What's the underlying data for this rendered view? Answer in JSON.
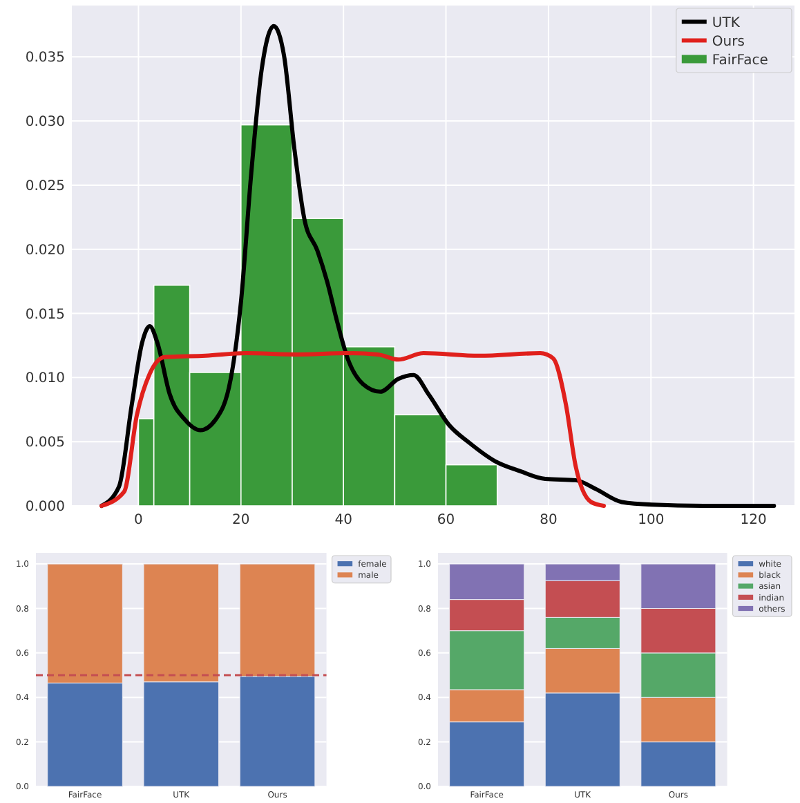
{
  "chart_data": [
    {
      "type": "histogram",
      "xlim": [
        -13,
        128
      ],
      "ylim": [
        0,
        0.039
      ],
      "xticks": [
        0,
        20,
        40,
        60,
        80,
        100,
        120
      ],
      "yticks": [
        {
          "value": 0,
          "label": "0.000"
        },
        {
          "value": 0.005,
          "label": "0.005"
        },
        {
          "value": 0.01,
          "label": "0.010"
        },
        {
          "value": 0.015,
          "label": "0.015"
        },
        {
          "value": 0.02,
          "label": "0.020"
        },
        {
          "value": 0.025,
          "label": "0.025"
        },
        {
          "value": 0.03,
          "label": "0.030"
        },
        {
          "value": 0.035,
          "label": "0.035"
        }
      ],
      "grid": true,
      "legend": "top right",
      "series": [
        {
          "name": "FairFace",
          "type": "histogram",
          "color": "#3a9a3a",
          "bins": [
            0,
            3,
            10,
            20,
            30,
            40,
            50,
            60,
            70
          ],
          "values": [
            0.0068,
            0.0172,
            0.0104,
            0.0297,
            0.0224,
            0.0124,
            0.0071,
            0.0032
          ]
        },
        {
          "name": "UTK",
          "type": "line",
          "color": "#000000",
          "x": [
            -7.2,
            -3.8,
            -1.3,
            0.7,
            2.2,
            3.7,
            6.1,
            9.1,
            12.1,
            15,
            18,
            20,
            22,
            24,
            26.4,
            28.4,
            30.4,
            32.4,
            34.9,
            36.8,
            38.8,
            40.8,
            43.8,
            47.2,
            50.7,
            53.7,
            56.6,
            60.6,
            64.6,
            69.5,
            74.5,
            79.4,
            85.3,
            89.3,
            94.3,
            100.2,
            112,
            124
          ],
          "values": [
            0,
            0.0015,
            0.0079,
            0.0127,
            0.014,
            0.0127,
            0.0087,
            0.0067,
            0.0059,
            0.0067,
            0.0099,
            0.0159,
            0.0259,
            0.0339,
            0.0374,
            0.0351,
            0.0279,
            0.0223,
            0.0199,
            0.0175,
            0.0143,
            0.0115,
            0.0095,
            0.0089,
            0.0099,
            0.0102,
            0.0087,
            0.0063,
            0.0049,
            0.0035,
            0.0027,
            0.0021,
            0.002,
            0.0013,
            0.0003,
            0.0001,
            0,
            0
          ]
        },
        {
          "name": "Ours",
          "type": "line",
          "color": "#e0201c",
          "x": [
            -7.2,
            -2.8,
            -0.3,
            2.2,
            5.1,
            13.1,
            21,
            30.9,
            40.8,
            46.7,
            50.7,
            55.6,
            66.5,
            78.4,
            80.9,
            83.4,
            85.3,
            88.3,
            90.8
          ],
          "values": [
            0,
            0.0011,
            0.0071,
            0.0103,
            0.0116,
            0.0117,
            0.0119,
            0.0118,
            0.0119,
            0.0118,
            0.0114,
            0.0119,
            0.0117,
            0.0119,
            0.0115,
            0.0079,
            0.0031,
            0.0003,
            0
          ]
        }
      ]
    },
    {
      "type": "bar",
      "stacked": true,
      "categories": [
        "FairFace",
        "UTK",
        "Ours"
      ],
      "ylim": [
        0,
        1.05
      ],
      "yticks": [
        {
          "value": 0,
          "label": "0.0"
        },
        {
          "value": 0.2,
          "label": "0.2"
        },
        {
          "value": 0.4,
          "label": "0.4"
        },
        {
          "value": 0.6,
          "label": "0.6"
        },
        {
          "value": 0.8,
          "label": "0.8"
        },
        {
          "value": 1,
          "label": "1.0"
        }
      ],
      "grid": "y",
      "legend": "right",
      "ref_lines": [
        {
          "axis": "y",
          "value": 0.5,
          "color": "#c44e52",
          "line_style": "dashed"
        }
      ],
      "series": [
        {
          "name": "female",
          "color": "#4c72b0",
          "values": [
            0.465,
            0.47,
            0.495
          ]
        },
        {
          "name": "male",
          "color": "#dd8452",
          "values": [
            0.535,
            0.53,
            0.505
          ]
        }
      ]
    },
    {
      "type": "bar",
      "stacked": true,
      "categories": [
        "FairFace",
        "UTK",
        "Ours"
      ],
      "ylim": [
        0,
        1.05
      ],
      "yticks": [
        {
          "value": 0,
          "label": "0.0"
        },
        {
          "value": 0.2,
          "label": "0.2"
        },
        {
          "value": 0.4,
          "label": "0.4"
        },
        {
          "value": 0.6,
          "label": "0.6"
        },
        {
          "value": 0.8,
          "label": "0.8"
        },
        {
          "value": 1,
          "label": "1.0"
        }
      ],
      "grid": "y",
      "legend": "right",
      "series": [
        {
          "name": "white",
          "color": "#4c72b0",
          "values": [
            0.29,
            0.42,
            0.2
          ]
        },
        {
          "name": "black",
          "color": "#dd8452",
          "values": [
            0.145,
            0.2,
            0.2
          ]
        },
        {
          "name": "asian",
          "color": "#55a868",
          "values": [
            0.265,
            0.14,
            0.2
          ]
        },
        {
          "name": "indian",
          "color": "#c44e52",
          "values": [
            0.14,
            0.165,
            0.2
          ]
        },
        {
          "name": "others",
          "color": "#8172b3",
          "values": [
            0.16,
            0.075,
            0.2
          ]
        }
      ]
    }
  ]
}
